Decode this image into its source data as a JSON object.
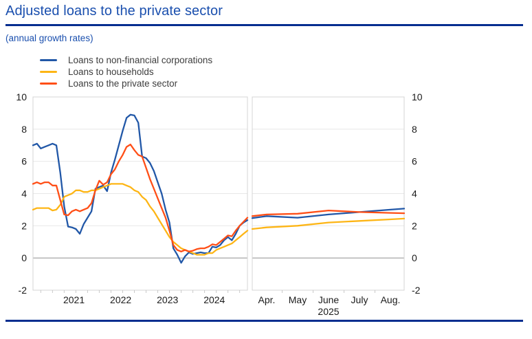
{
  "chart_data": {
    "type": "line",
    "title": "Adjusted loans to the private sector",
    "subtitle": "(annual growth rates)",
    "ylim": [
      -2,
      10
    ],
    "yticks": [
      10,
      8,
      6,
      4,
      2,
      0,
      -2
    ],
    "grid": true,
    "legend_position": "top-left",
    "style": {
      "gridline": "#e8e8e8",
      "zero_line": "#9b9b9b",
      "panel_border": "#d4d4d4",
      "tick": "#c9c9c9",
      "axis_text": "#1a1a1a",
      "title_color": "#1a4fae",
      "rule_color": "#032d8f"
    },
    "series_meta": [
      {
        "id": "nfc",
        "label": "Loans to non-financial corporations",
        "color": "#2157a7"
      },
      {
        "id": "households",
        "label": "Loans to households",
        "color": "#fdb515"
      },
      {
        "id": "private_sector",
        "label": "Loans to the private sector",
        "color": "#ff4e16"
      }
    ],
    "left_panel": {
      "x_frequency": "monthly",
      "x_start": "2020-08",
      "x_end": "2025-03",
      "year_labels": [
        "2021",
        "2022",
        "2023",
        "2024"
      ],
      "series": {
        "nfc": [
          7.0,
          7.1,
          6.8,
          6.9,
          7.0,
          7.1,
          7.0,
          5.3,
          3.2,
          1.95,
          1.9,
          1.8,
          1.5,
          2.1,
          2.5,
          2.9,
          4.3,
          4.4,
          4.5,
          4.15,
          5.3,
          6.1,
          7.0,
          7.9,
          8.7,
          8.9,
          8.85,
          8.4,
          6.3,
          6.2,
          5.9,
          5.4,
          4.7,
          4.0,
          3.0,
          2.2,
          0.6,
          0.2,
          -0.3,
          0.1,
          0.35,
          0.25,
          0.3,
          0.35,
          0.3,
          0.3,
          0.7,
          0.65,
          0.8,
          1.1,
          1.3,
          1.1,
          1.5,
          2.0,
          2.2,
          2.35
        ],
        "households": [
          3.0,
          3.1,
          3.1,
          3.1,
          3.1,
          2.95,
          3.0,
          3.3,
          3.8,
          3.9,
          4.0,
          4.2,
          4.2,
          4.1,
          4.1,
          4.2,
          4.2,
          4.3,
          4.4,
          4.5,
          4.6,
          4.6,
          4.6,
          4.6,
          4.5,
          4.4,
          4.2,
          4.1,
          3.8,
          3.6,
          3.2,
          2.9,
          2.5,
          2.1,
          1.7,
          1.3,
          1.0,
          0.8,
          0.6,
          0.5,
          0.4,
          0.3,
          0.2,
          0.2,
          0.2,
          0.3,
          0.3,
          0.5,
          0.6,
          0.7,
          0.8,
          0.9,
          1.1,
          1.3,
          1.5,
          1.7
        ],
        "private_sector": [
          4.6,
          4.7,
          4.6,
          4.7,
          4.7,
          4.5,
          4.5,
          3.6,
          2.7,
          2.65,
          2.9,
          3.0,
          2.9,
          3.0,
          3.1,
          3.4,
          4.2,
          4.8,
          4.55,
          4.7,
          5.2,
          5.5,
          6.0,
          6.4,
          6.9,
          7.05,
          6.7,
          6.4,
          6.3,
          5.6,
          4.9,
          4.3,
          3.7,
          3.1,
          2.5,
          1.7,
          0.8,
          0.5,
          0.4,
          0.5,
          0.4,
          0.45,
          0.55,
          0.6,
          0.6,
          0.7,
          0.85,
          0.8,
          1.0,
          1.2,
          1.4,
          1.35,
          1.7,
          2.0,
          2.25,
          2.5
        ]
      }
    },
    "right_panel": {
      "month_labels": [
        "Apr.",
        "May",
        "June",
        "July",
        "Aug."
      ],
      "year_label": "2025",
      "series": {
        "nfc": [
          2.6,
          2.5,
          2.7,
          2.85,
          3.0
        ],
        "households": [
          1.9,
          2.0,
          2.2,
          2.3,
          2.4
        ],
        "private_sector": [
          2.7,
          2.75,
          2.95,
          2.85,
          2.8
        ]
      }
    }
  }
}
